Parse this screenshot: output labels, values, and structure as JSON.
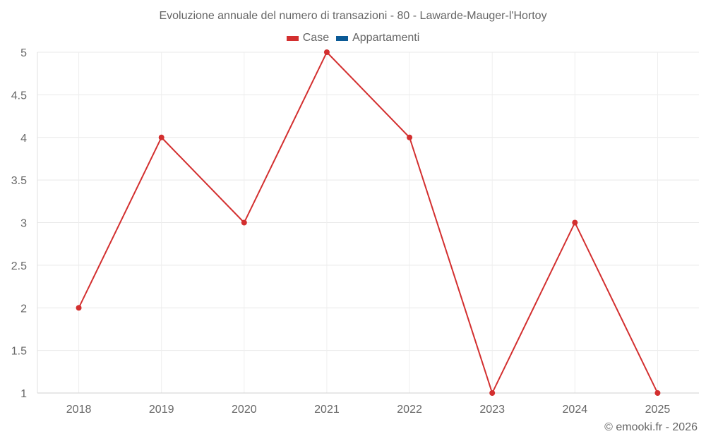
{
  "chart_data": {
    "type": "line",
    "title": "Evoluzione annuale del numero di transazioni - 80 - Lawarde-Mauger-l'Hortoy",
    "categories": [
      "2018",
      "2019",
      "2020",
      "2021",
      "2022",
      "2023",
      "2024",
      "2025"
    ],
    "series": [
      {
        "name": "Case",
        "color": "#d32f2f",
        "values": [
          2,
          4,
          3,
          5,
          4,
          1,
          3,
          1
        ]
      },
      {
        "name": "Appartamenti",
        "color": "#0b5a96",
        "values": []
      }
    ],
    "xlabel": "",
    "ylabel": "",
    "ylim": [
      1,
      5
    ],
    "yticks": [
      "1",
      "1.5",
      "2",
      "2.5",
      "3",
      "3.5",
      "4",
      "4.5",
      "5"
    ],
    "grid": true,
    "legend_position": "top"
  },
  "legend": [
    {
      "label": "Case",
      "color": "#d32f2f"
    },
    {
      "label": "Appartamenti",
      "color": "#0b5a96"
    }
  ],
  "credit": "© emooki.fr - 2026"
}
